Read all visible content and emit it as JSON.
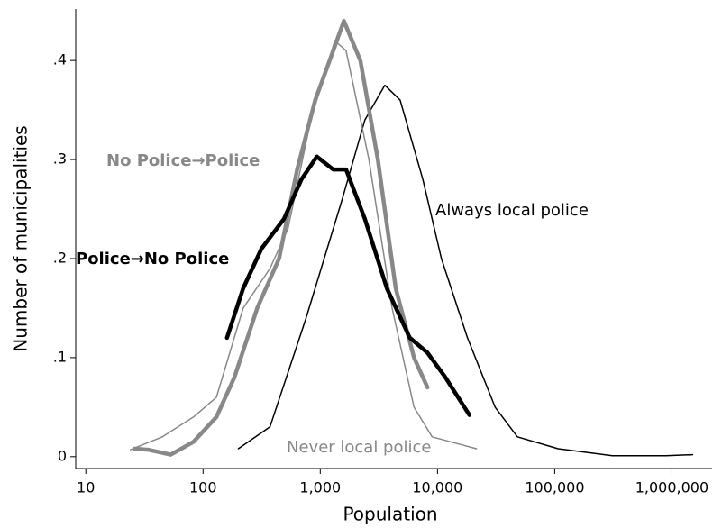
{
  "chart_data": {
    "type": "line",
    "x_label": "Population",
    "y_label": "Number of municipalities",
    "xscale": "log",
    "xlim": [
      8.2,
      2200000
    ],
    "ylim": [
      -0.012,
      0.452
    ],
    "xticks": [
      10,
      100,
      {
        "value": 1000,
        "label": "1,000"
      },
      {
        "value": 10000,
        "label": "10,000"
      },
      {
        "value": 100000,
        "label": "100,000"
      },
      {
        "value": 1000000,
        "label": "1,000,000"
      }
    ],
    "yticks": [
      0,
      {
        "value": 0.1,
        "label": ".1"
      },
      {
        "value": 0.2,
        "label": ".2"
      },
      {
        "value": 0.3,
        "label": ".3"
      },
      {
        "value": 0.4,
        "label": ".4"
      }
    ],
    "series": [
      {
        "name": "Always local police",
        "color": "#000000",
        "width": 1.5,
        "x": [
          200,
          372,
          757,
          1540,
          2400,
          3550,
          4800,
          7500,
          10800,
          18000,
          31000,
          48000,
          107000,
          310000,
          890000,
          1500000
        ],
        "values": [
          0.008,
          0.03,
          0.14,
          0.26,
          0.34,
          0.375,
          0.36,
          0.28,
          0.2,
          0.12,
          0.05,
          0.02,
          0.008,
          0.001,
          0.001,
          0.002
        ]
      },
      {
        "name": "Never local police",
        "color": "#888888",
        "width": 1.5,
        "x": [
          24,
          45,
          83,
          130,
          220,
          372,
          530,
          830,
          1330,
          1660,
          2600,
          4100,
          6300,
          9000,
          21500
        ],
        "values": [
          0.007,
          0.02,
          0.04,
          0.06,
          0.15,
          0.19,
          0.23,
          0.34,
          0.42,
          0.41,
          0.3,
          0.15,
          0.05,
          0.02,
          0.008
        ]
      },
      {
        "name": "No Police→Police",
        "color": "#888888",
        "width": 4.5,
        "x": [
          26,
          34,
          53,
          83,
          130,
          185,
          290,
          445,
          635,
          905,
          1290,
          1590,
          2200,
          3100,
          4400,
          6300,
          8200
        ],
        "values": [
          0.008,
          0.007,
          0.002,
          0.015,
          0.04,
          0.08,
          0.15,
          0.2,
          0.29,
          0.36,
          0.41,
          0.44,
          0.4,
          0.3,
          0.17,
          0.1,
          0.07
        ]
      },
      {
        "name": "Police→No Police",
        "color": "#000000",
        "width": 4.5,
        "x": [
          160,
          220,
          315,
          490,
          690,
          935,
          1290,
          1660,
          2400,
          3700,
          5800,
          8200,
          11700,
          18700
        ],
        "values": [
          0.12,
          0.17,
          0.21,
          0.24,
          0.28,
          0.303,
          0.29,
          0.29,
          0.24,
          0.17,
          0.12,
          0.105,
          0.08,
          0.042
        ]
      }
    ]
  }
}
